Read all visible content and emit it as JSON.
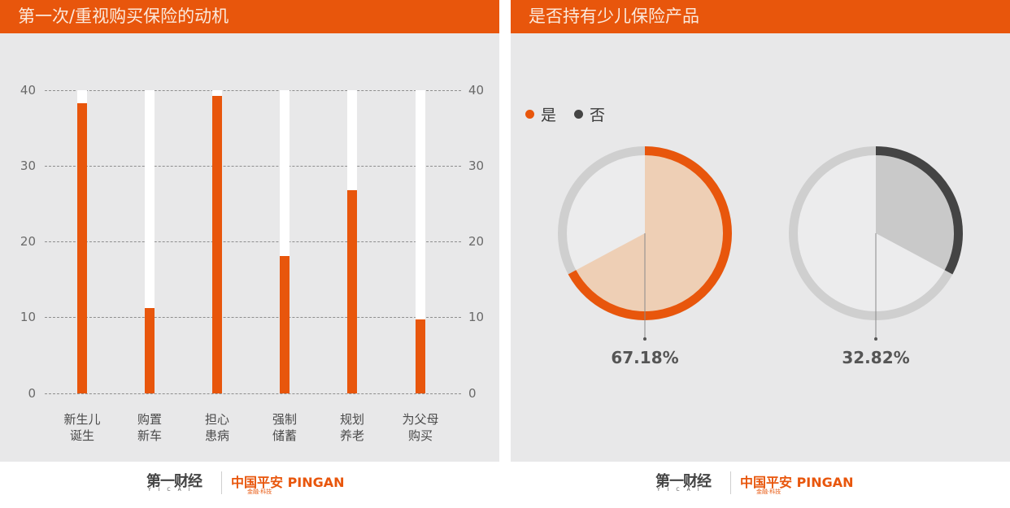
{
  "left_panel": {
    "title": "第一次/重视购买保险的动机",
    "y_ticks": [
      "40",
      "30",
      "20",
      "10",
      "0"
    ],
    "categories": [
      {
        "line1": "新生儿",
        "line2": "诞生"
      },
      {
        "line1": "购置",
        "line2": "新车"
      },
      {
        "line1": "担心",
        "line2": "患病"
      },
      {
        "line1": "强制",
        "line2": "储蓄"
      },
      {
        "line1": "规划",
        "line2": "养老"
      },
      {
        "line1": "为父母",
        "line2": "购买"
      }
    ]
  },
  "right_panel": {
    "title": "是否持有少儿保险产品",
    "legend": [
      {
        "label": "是",
        "color": "#e8560c"
      },
      {
        "label": "否",
        "color": "#444444"
      }
    ],
    "pies": [
      {
        "label": "67.18%"
      },
      {
        "label": "32.82%"
      }
    ]
  },
  "footer": {
    "brand1": "第一财经",
    "brand1_sub": "YICAI",
    "brand2": "中国平安 PINGAN",
    "brand2_sub": "金融·科技"
  },
  "colors": {
    "accent": "#e8560c",
    "panel_bg": "#e8e8e9",
    "dark": "#444444",
    "pie_light_orange": "#eecfb5",
    "pie_light_gray": "#c9c9c9"
  },
  "chart_data": [
    {
      "type": "bar",
      "title": "第一次/重视购买保险的动机",
      "categories": [
        "新生儿诞生",
        "购置新车",
        "担心患病",
        "强制储蓄",
        "规划养老",
        "为父母购买"
      ],
      "values": [
        38.3,
        11.3,
        39.3,
        18.1,
        26.8,
        9.8
      ],
      "ylim": [
        0,
        40
      ],
      "y_ticks": [
        0,
        10,
        20,
        30,
        40
      ],
      "xlabel": "",
      "ylabel": "",
      "grid": true,
      "secondary_y_axis": true,
      "background_bars_to": 40
    },
    {
      "type": "pie",
      "title": "是否持有少儿保险产品",
      "categories": [
        "是",
        "否"
      ],
      "values": [
        67.18,
        32.82
      ],
      "unit": "%",
      "legend_position": "top-left"
    }
  ]
}
